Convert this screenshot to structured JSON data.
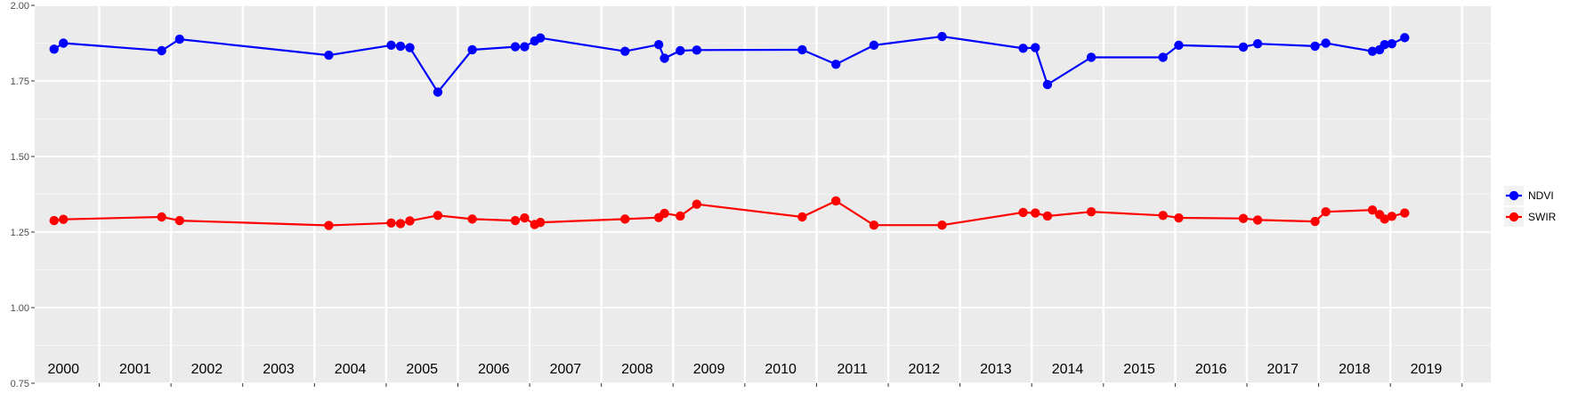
{
  "chart_data": {
    "type": "line",
    "xlabel": "",
    "ylabel": "",
    "ylim": [
      0.75,
      2.0
    ],
    "xlim": [
      1999.6,
      2019.9
    ],
    "y_ticks": [
      "0.75",
      "1.00",
      "1.25",
      "1.50",
      "1.75",
      "2.00"
    ],
    "x_year_labels": [
      "2000",
      "2001",
      "2002",
      "2003",
      "2004",
      "2005",
      "2006",
      "2007",
      "2008",
      "2009",
      "2010",
      "2011",
      "2012",
      "2013",
      "2014",
      "2015",
      "2016",
      "2017",
      "2018",
      "2019"
    ],
    "grid": true,
    "legend_position": "right",
    "x": [
      1999.87,
      2000.0,
      2001.37,
      2001.62,
      2003.7,
      2004.57,
      2004.7,
      2004.83,
      2005.22,
      2005.7,
      2006.3,
      2006.43,
      2006.57,
      2006.65,
      2007.83,
      2008.3,
      2008.38,
      2008.6,
      2008.83,
      2010.3,
      2010.77,
      2011.3,
      2012.25,
      2013.38,
      2013.55,
      2013.72,
      2014.33,
      2015.33,
      2015.55,
      2016.45,
      2016.65,
      2017.45,
      2017.6,
      2018.25,
      2018.35,
      2018.42,
      2018.52,
      2018.7
    ],
    "series": [
      {
        "name": "NDVI",
        "color": "#0000ff",
        "values": [
          1.855,
          1.875,
          1.85,
          1.888,
          1.835,
          1.868,
          1.865,
          1.86,
          1.713,
          1.853,
          1.863,
          1.863,
          1.882,
          1.892,
          1.848,
          1.87,
          1.825,
          1.85,
          1.852,
          1.853,
          1.805,
          1.868,
          1.897,
          1.858,
          1.86,
          1.738,
          1.828,
          1.828,
          1.868,
          1.862,
          1.873,
          1.865,
          1.875,
          1.848,
          1.853,
          1.87,
          1.873,
          1.893
        ]
      },
      {
        "name": "SWIR",
        "color": "#ff0000",
        "values": [
          1.288,
          1.292,
          1.3,
          1.288,
          1.272,
          1.28,
          1.278,
          1.287,
          1.305,
          1.293,
          1.288,
          1.297,
          1.275,
          1.282,
          1.293,
          1.298,
          1.312,
          1.303,
          1.342,
          1.3,
          1.353,
          1.273,
          1.273,
          1.315,
          1.313,
          1.303,
          1.317,
          1.305,
          1.297,
          1.295,
          1.29,
          1.285,
          1.317,
          1.323,
          1.308,
          1.293,
          1.302,
          1.313
        ]
      }
    ]
  }
}
